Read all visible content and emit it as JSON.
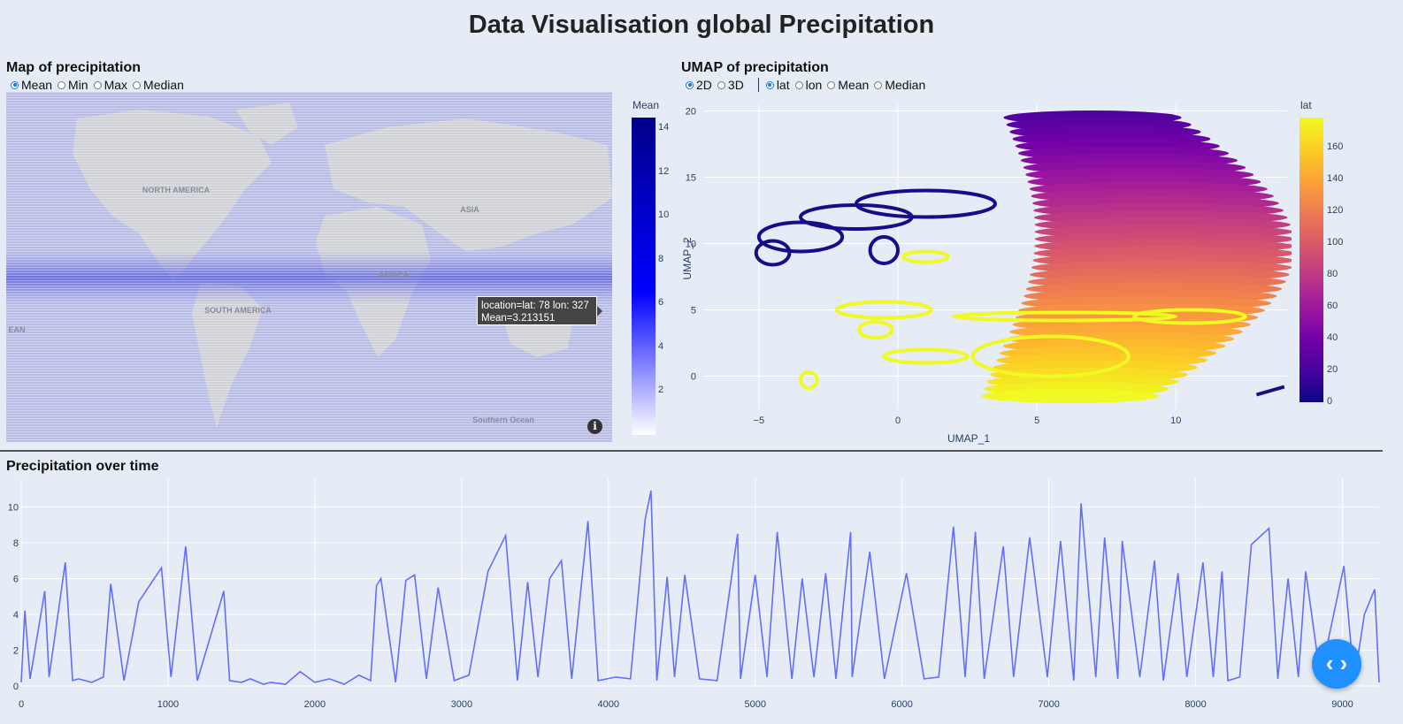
{
  "page": {
    "title": "Data Visualisation global Precipitation"
  },
  "map_panel": {
    "title": "Map of precipitation",
    "options": [
      {
        "label": "Mean",
        "checked": true
      },
      {
        "label": "Min",
        "checked": false
      },
      {
        "label": "Max",
        "checked": false
      },
      {
        "label": "Median",
        "checked": false
      }
    ],
    "continent_labels": [
      "NORTH AMERICA",
      "SOUTH AMERICA",
      "AFRICA",
      "ASIA",
      "EAN",
      "Southern Ocean"
    ],
    "colorbar": {
      "title": "Mean",
      "ticks": [
        "14",
        "12",
        "10",
        "8",
        "6",
        "4",
        "2"
      ],
      "min": 0,
      "max": 14.5,
      "colors": [
        "#ffffff",
        "#0000ff",
        "#00008b"
      ]
    },
    "tooltip": {
      "line1": "location=lat: 78 lon: 327",
      "line2": "Mean=3.213151"
    },
    "info_icon": "info-icon"
  },
  "umap_panel": {
    "title": "UMAP of precipitation",
    "dim_options": [
      {
        "label": "2D",
        "checked": true
      },
      {
        "label": "3D",
        "checked": false
      }
    ],
    "color_options": [
      {
        "label": "lat",
        "checked": true
      },
      {
        "label": "lon",
        "checked": false
      },
      {
        "label": "Mean",
        "checked": false
      },
      {
        "label": "Median",
        "checked": false
      }
    ],
    "colorbar": {
      "title": "lat",
      "ticks": [
        "160",
        "140",
        "120",
        "100",
        "80",
        "60",
        "40",
        "20",
        "0"
      ],
      "min": 0,
      "max": 179,
      "colorscale": "plasma"
    }
  },
  "chart_data": [
    {
      "type": "scatter",
      "title": "",
      "xlabel": "UMAP_1",
      "ylabel": "UMAP_2",
      "xlim": [
        -7,
        14
      ],
      "ylim": [
        -2.5,
        20.5
      ],
      "x_ticks": [
        "−5",
        "0",
        "5",
        "10"
      ],
      "y_ticks": [
        "20",
        "15",
        "10",
        "5",
        "0"
      ],
      "color_by": "lat",
      "color_range": [
        0,
        179
      ],
      "regions": [
        {
          "description": "dense purple-to-yellow cloud",
          "x_range": [
            1.5,
            11
          ],
          "y_range": [
            -1.5,
            19.5
          ],
          "lat_range": [
            20,
            179
          ]
        },
        {
          "description": "dark purple loops",
          "x_range": [
            -5.5,
            4.5
          ],
          "y_range": [
            8,
            15.5
          ],
          "lat": 5
        },
        {
          "description": "yellow loops",
          "x_range": [
            -3.5,
            13
          ],
          "y_range": [
            -1,
            6.5
          ],
          "lat": 175
        }
      ]
    },
    {
      "type": "line",
      "title": "Precipitation over time",
      "xlabel": "",
      "ylabel": "",
      "xlim": [
        0,
        9250
      ],
      "ylim": [
        0,
        11.6
      ],
      "x_ticks": [
        "0",
        "1000",
        "2000",
        "3000",
        "4000",
        "5000",
        "6000",
        "7000",
        "8000",
        "9000"
      ],
      "y_ticks": [
        "10",
        "8",
        "6",
        "4",
        "2",
        "0"
      ],
      "color": "#636efa",
      "x": [
        0,
        25,
        60,
        160,
        190,
        300,
        350,
        390,
        480,
        560,
        610,
        700,
        800,
        955,
        1020,
        1120,
        1200,
        1380,
        1420,
        1500,
        1560,
        1650,
        1700,
        1800,
        1900,
        2000,
        2100,
        2200,
        2300,
        2380,
        2420,
        2450,
        2550,
        2620,
        2680,
        2760,
        2840,
        2950,
        3050,
        3180,
        3300,
        3380,
        3450,
        3520,
        3600,
        3680,
        3750,
        3860,
        3930,
        4050,
        4150,
        4250,
        4290,
        4330,
        4400,
        4450,
        4520,
        4620,
        4740,
        4880,
        4900,
        5000,
        5080,
        5150,
        5250,
        5320,
        5400,
        5480,
        5550,
        5650,
        5660,
        5780,
        5880,
        6030,
        6150,
        6250,
        6350,
        6430,
        6500,
        6560,
        6690,
        6760,
        6870,
        6990,
        7080,
        7170,
        7220,
        7320,
        7380,
        7470,
        7500,
        7620,
        7720,
        7780,
        7880,
        7940,
        8050,
        8120,
        8180,
        8220,
        8300,
        8380,
        8500,
        8560,
        8630,
        8700,
        8750,
        8850,
        9010,
        9080,
        9150,
        9220,
        9250
      ],
      "y": [
        0.2,
        4.2,
        0.4,
        5.3,
        0.5,
        6.9,
        0.3,
        0.4,
        0.2,
        0.5,
        5.7,
        0.3,
        4.7,
        6.6,
        0.5,
        7.8,
        0.3,
        5.3,
        0.3,
        0.2,
        0.4,
        0.1,
        0.2,
        0.1,
        0.8,
        0.2,
        0.4,
        0.1,
        0.6,
        0.3,
        5.6,
        6.0,
        0.2,
        5.9,
        6.2,
        0.4,
        5.5,
        0.3,
        0.6,
        6.4,
        8.4,
        0.3,
        5.8,
        0.5,
        6.0,
        7.0,
        0.4,
        9.2,
        0.3,
        0.5,
        0.4,
        9.3,
        10.9,
        0.3,
        6.1,
        0.5,
        6.2,
        0.4,
        0.3,
        8.5,
        0.4,
        6.2,
        0.5,
        8.6,
        0.4,
        6.0,
        0.5,
        6.3,
        0.4,
        8.6,
        0.5,
        7.5,
        0.4,
        6.3,
        0.4,
        0.5,
        8.9,
        0.5,
        8.6,
        0.4,
        7.8,
        0.5,
        8.3,
        0.5,
        8.1,
        0.3,
        10.2,
        0.5,
        8.3,
        0.4,
        8.1,
        0.5,
        7.0,
        0.3,
        6.3,
        0.5,
        6.9,
        0.5,
        6.4,
        0.3,
        0.5,
        7.9,
        8.8,
        0.4,
        6.0,
        0.5,
        6.4,
        0.5,
        6.7,
        0.3,
        4.0,
        5.4,
        0.2
      ]
    }
  ],
  "timeseries_panel": {
    "title": "Precipitation over time"
  },
  "fab": {
    "icon": "code-icon",
    "glyph": "‹ ›"
  }
}
